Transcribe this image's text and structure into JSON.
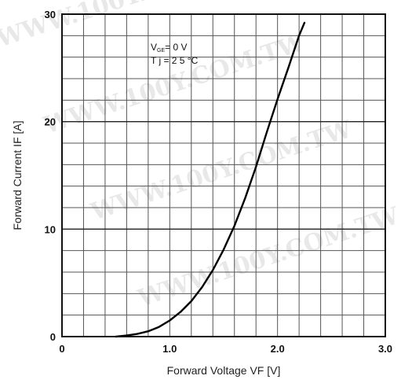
{
  "chart_data": {
    "type": "line",
    "xlabel": "Forward Voltage VF [V]",
    "ylabel": "Forward Current IF [A]",
    "xlim": [
      0,
      3.0
    ],
    "ylim": [
      0,
      30
    ],
    "x_ticks": [
      "0",
      "1.0",
      "2.0",
      "3.0"
    ],
    "y_ticks": [
      "0",
      "10",
      "20",
      "30"
    ],
    "x_minor_step": 0.2,
    "y_minor_step": 2,
    "grid": true,
    "annotations": {
      "condition_1": {
        "prefix": "V",
        "sub": "GE",
        "suffix": "= 0 V"
      },
      "condition_2": "T j  = 2 5 °C"
    },
    "series": [
      {
        "x": [
          0.5,
          0.6,
          0.7,
          0.8,
          0.9,
          1.0,
          1.1,
          1.2,
          1.3,
          1.4,
          1.5,
          1.6,
          1.7,
          1.8,
          1.9,
          2.0,
          2.1,
          2.2,
          2.25
        ],
        "y": [
          0.0,
          0.1,
          0.25,
          0.5,
          0.9,
          1.5,
          2.3,
          3.3,
          4.6,
          6.2,
          8.1,
          10.3,
          12.9,
          15.8,
          19.0,
          22.1,
          25.0,
          28.0,
          29.2
        ]
      }
    ],
    "watermark": "WWW.100Y.COM.TW"
  }
}
